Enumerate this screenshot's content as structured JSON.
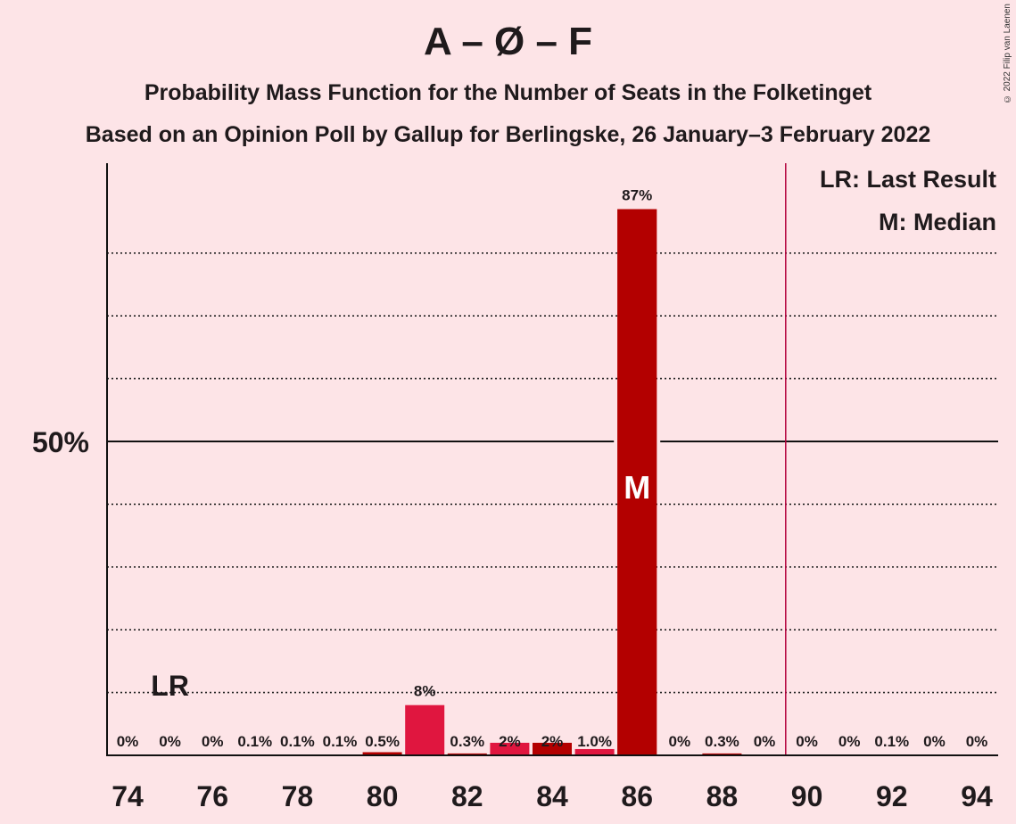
{
  "title": "A – Ø – F",
  "subtitle1": "Probability Mass Function for the Number of Seats in the Folketinget",
  "subtitle2": "Based on an Opinion Poll by Gallup for Berlingske, 26 January–3 February 2022",
  "copyright": "© 2022 Filip van Laenen",
  "legend": {
    "last_result": "LR: Last Result",
    "median": "M: Median"
  },
  "markers": {
    "last_result_label": "LR",
    "last_result_seat": 75,
    "median_label": "M",
    "median_seat": 86,
    "majority_seat": 89.5
  },
  "colors": {
    "background": "#fde4e7",
    "bar_dark": "#b30000",
    "bar_light": "#e0163f",
    "majority_line": "#b3003c"
  },
  "chart_data": {
    "type": "bar",
    "x": [
      74,
      75,
      76,
      77,
      78,
      79,
      80,
      81,
      82,
      83,
      84,
      85,
      86,
      87,
      88,
      89,
      90,
      91,
      92,
      93,
      94
    ],
    "values": [
      0,
      0,
      0,
      0.1,
      0.1,
      0.1,
      0.5,
      8,
      0.3,
      2,
      2,
      1.0,
      87,
      0,
      0.3,
      0,
      0,
      0,
      0.1,
      0,
      0
    ],
    "data_labels": [
      "0%",
      "0%",
      "0%",
      "0.1%",
      "0.1%",
      "0.1%",
      "0.5%",
      "8%",
      "0.3%",
      "2%",
      "2%",
      "1.0%",
      "87%",
      "0%",
      "0.3%",
      "0%",
      "0%",
      "0%",
      "0.1%",
      "0%",
      "0%"
    ],
    "x_ticks": [
      "74",
      "76",
      "78",
      "80",
      "82",
      "84",
      "86",
      "88",
      "90",
      "92",
      "94"
    ],
    "y_ticks": [
      "50%"
    ],
    "ylim": [
      0,
      94
    ],
    "gridlines_dotted": [
      10,
      20,
      30,
      40,
      60,
      70,
      80
    ],
    "gridline_solid": 50
  }
}
